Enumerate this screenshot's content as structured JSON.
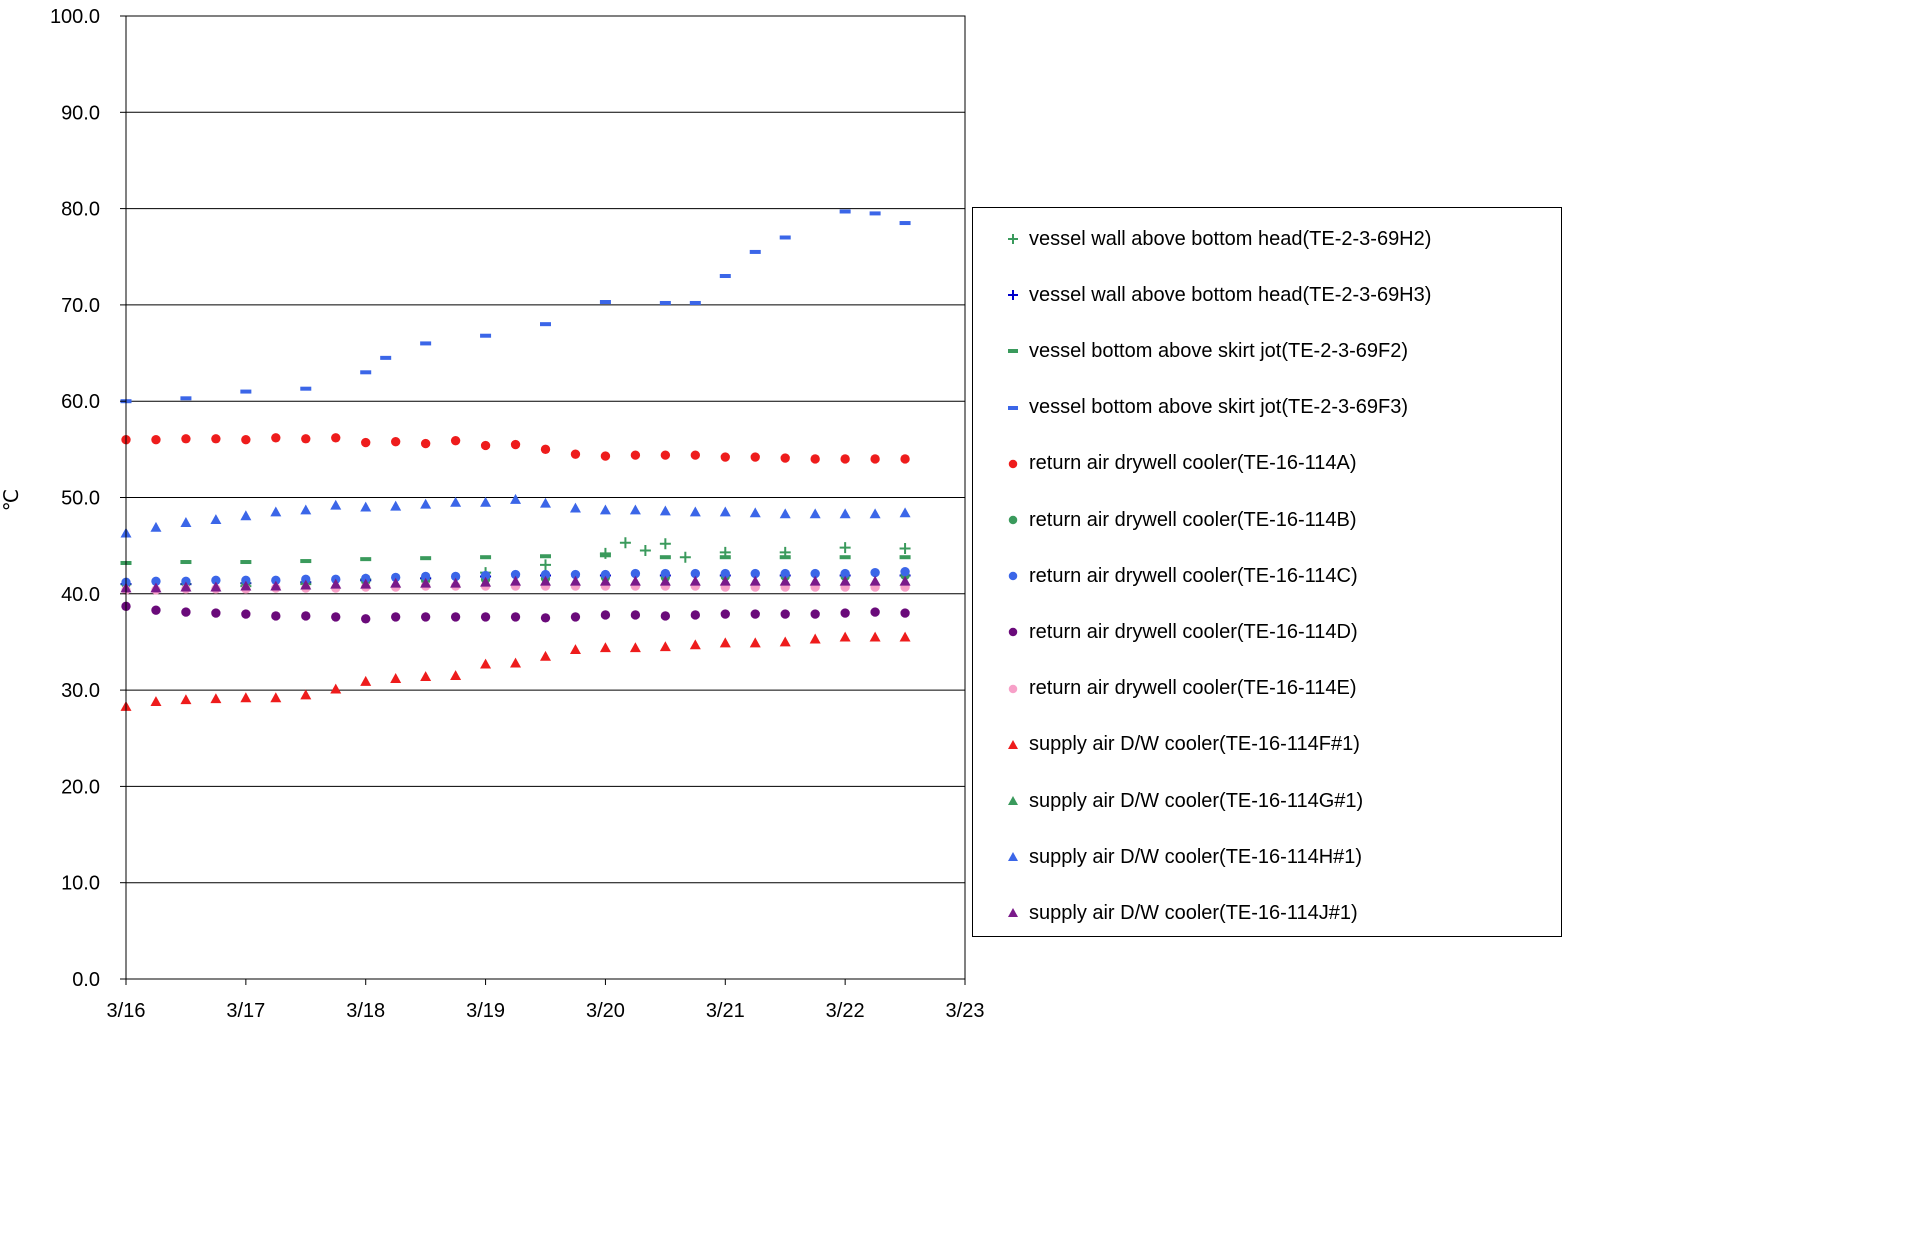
{
  "chart_data": {
    "type": "scatter",
    "title": "",
    "xlabel": "",
    "ylabel": "℃",
    "xlim": [
      "3/16",
      "3/23"
    ],
    "ylim": [
      0,
      100
    ],
    "y_ticks": [
      "0.0",
      "10.0",
      "20.0",
      "30.0",
      "40.0",
      "50.0",
      "60.0",
      "70.0",
      "80.0",
      "90.0",
      "100.0"
    ],
    "x_ticks": [
      "3/16",
      "3/17",
      "3/18",
      "3/19",
      "3/20",
      "3/21",
      "3/22",
      "3/23"
    ],
    "grid": "horizontal",
    "legend_position": "right",
    "series": [
      {
        "name": "vessel wall above bottom head(TE-2-3-69H2)",
        "marker": "plus",
        "color": "#3a9a5c",
        "x": [
          "3/16 00:00",
          "3/16 12:00",
          "3/17 00:00",
          "3/17 12:00",
          "3/18 00:00",
          "3/18 12:00",
          "3/19 00:00",
          "3/19 12:00",
          "3/20 00:00",
          "3/20 04:00",
          "3/20 08:00",
          "3/20 12:00",
          "3/20 16:00",
          "3/21 00:00",
          "3/21 12:00",
          "3/22 00:00",
          "3/22 12:00"
        ],
        "y": [
          41.0,
          41.0,
          40.8,
          41.0,
          41.5,
          41.6,
          42.2,
          43.0,
          44.2,
          45.3,
          44.5,
          45.2,
          43.8,
          44.3,
          44.3,
          44.8,
          44.7
        ]
      },
      {
        "name": "vessel wall above bottom head(TE-2-3-69H3)",
        "marker": "plus",
        "color": "#0000cc",
        "x": [
          "3/16 00:00",
          "3/16 12:00",
          "3/17 00:00",
          "3/17 12:00",
          "3/18 00:00",
          "3/18 12:00",
          "3/19 00:00",
          "3/19 12:00",
          "3/20 00:00",
          "3/20 12:00",
          "3/21 00:00",
          "3/21 12:00",
          "3/22 00:00",
          "3/22 12:00"
        ],
        "y": [
          41.0,
          41.0,
          41.1,
          41.2,
          41.4,
          41.6,
          41.8,
          41.9,
          41.9,
          41.9,
          41.9,
          41.9,
          41.9,
          41.9
        ]
      },
      {
        "name": "vessel bottom above skirt jot(TE-2-3-69F2)",
        "marker": "dash",
        "color": "#3a9a5c",
        "x": [
          "3/16 00:00",
          "3/16 12:00",
          "3/17 00:00",
          "3/17 12:00",
          "3/18 00:00",
          "3/18 12:00",
          "3/19 00:00",
          "3/19 12:00",
          "3/20 00:00",
          "3/20 12:00",
          "3/21 00:00",
          "3/21 12:00",
          "3/22 00:00",
          "3/22 12:00"
        ],
        "y": [
          43.2,
          43.3,
          43.3,
          43.4,
          43.6,
          43.7,
          43.8,
          43.9,
          44.0,
          43.8,
          43.8,
          43.8,
          43.8,
          43.8
        ]
      },
      {
        "name": "vessel bottom above skirt jot(TE-2-3-69F3)",
        "marker": "dash",
        "color": "#3b66e8",
        "x": [
          "3/16 00:00",
          "3/16 12:00",
          "3/17 00:00",
          "3/17 12:00",
          "3/18 00:00",
          "3/18 04:00",
          "3/18 12:00",
          "3/19 00:00",
          "3/19 12:00",
          "3/20 00:00",
          "3/20 12:00",
          "3/20 18:00",
          "3/21 00:00",
          "3/21 06:00",
          "3/21 12:00",
          "3/22 00:00",
          "3/22 06:00",
          "3/22 12:00"
        ],
        "y": [
          60.0,
          60.3,
          61.0,
          61.3,
          63.0,
          64.5,
          66.0,
          66.8,
          68.0,
          70.3,
          70.2,
          70.2,
          73.0,
          75.5,
          77.0,
          79.7,
          79.5,
          78.5
        ]
      },
      {
        "name": "return air drywell cooler(TE-16-114A)",
        "marker": "circle",
        "color": "#ee1c1c",
        "x": [
          "3/16 00:00",
          "3/16 06:00",
          "3/16 12:00",
          "3/16 18:00",
          "3/17 00:00",
          "3/17 06:00",
          "3/17 12:00",
          "3/17 18:00",
          "3/18 00:00",
          "3/18 06:00",
          "3/18 12:00",
          "3/18 18:00",
          "3/19 00:00",
          "3/19 06:00",
          "3/19 12:00",
          "3/19 18:00",
          "3/20 00:00",
          "3/20 06:00",
          "3/20 12:00",
          "3/20 18:00",
          "3/21 00:00",
          "3/21 06:00",
          "3/21 12:00",
          "3/21 18:00",
          "3/22 00:00",
          "3/22 06:00",
          "3/22 12:00"
        ],
        "y": [
          56.0,
          56.0,
          56.1,
          56.1,
          56.0,
          56.2,
          56.1,
          56.2,
          55.7,
          55.8,
          55.6,
          55.9,
          55.4,
          55.5,
          55.0,
          54.5,
          54.3,
          54.4,
          54.4,
          54.4,
          54.2,
          54.2,
          54.1,
          54.0,
          54.0,
          54.0,
          54.0
        ]
      },
      {
        "name": "return air drywell cooler(TE-16-114B)",
        "marker": "circle",
        "color": "#3a9a5c",
        "x": [
          "3/16 00:00",
          "3/16 12:00",
          "3/17 00:00",
          "3/17 12:00",
          "3/18 00:00",
          "3/18 12:00",
          "3/19 00:00",
          "3/19 12:00",
          "3/20 00:00",
          "3/20 12:00",
          "3/21 00:00",
          "3/21 12:00",
          "3/22 00:00",
          "3/22 12:00"
        ],
        "y": [
          41.0,
          41.1,
          41.1,
          41.2,
          41.3,
          41.4,
          41.5,
          41.6,
          41.7,
          41.7,
          41.8,
          41.8,
          41.8,
          41.9
        ]
      },
      {
        "name": "return air drywell cooler(TE-16-114C)",
        "marker": "circle",
        "color": "#3b66e8",
        "x": [
          "3/16 00:00",
          "3/16 06:00",
          "3/16 12:00",
          "3/16 18:00",
          "3/17 00:00",
          "3/17 06:00",
          "3/17 12:00",
          "3/17 18:00",
          "3/18 00:00",
          "3/18 06:00",
          "3/18 12:00",
          "3/18 18:00",
          "3/19 00:00",
          "3/19 06:00",
          "3/19 12:00",
          "3/19 18:00",
          "3/20 00:00",
          "3/20 06:00",
          "3/20 12:00",
          "3/20 18:00",
          "3/21 00:00",
          "3/21 06:00",
          "3/21 12:00",
          "3/21 18:00",
          "3/22 00:00",
          "3/22 06:00",
          "3/22 12:00"
        ],
        "y": [
          41.2,
          41.3,
          41.3,
          41.4,
          41.4,
          41.4,
          41.5,
          41.5,
          41.6,
          41.7,
          41.8,
          41.8,
          41.9,
          42.0,
          42.0,
          42.0,
          42.0,
          42.1,
          42.1,
          42.1,
          42.1,
          42.1,
          42.1,
          42.1,
          42.1,
          42.2,
          42.3
        ]
      },
      {
        "name": "return air drywell cooler(TE-16-114D)",
        "marker": "circle",
        "color": "#6a0a7a",
        "x": [
          "3/16 00:00",
          "3/16 06:00",
          "3/16 12:00",
          "3/16 18:00",
          "3/17 00:00",
          "3/17 06:00",
          "3/17 12:00",
          "3/17 18:00",
          "3/18 00:00",
          "3/18 06:00",
          "3/18 12:00",
          "3/18 18:00",
          "3/19 00:00",
          "3/19 06:00",
          "3/19 12:00",
          "3/19 18:00",
          "3/20 00:00",
          "3/20 06:00",
          "3/20 12:00",
          "3/20 18:00",
          "3/21 00:00",
          "3/21 06:00",
          "3/21 12:00",
          "3/21 18:00",
          "3/22 00:00",
          "3/22 06:00",
          "3/22 12:00"
        ],
        "y": [
          38.7,
          38.3,
          38.1,
          38.0,
          37.9,
          37.7,
          37.7,
          37.6,
          37.4,
          37.6,
          37.6,
          37.6,
          37.6,
          37.6,
          37.5,
          37.6,
          37.8,
          37.8,
          37.7,
          37.8,
          37.9,
          37.9,
          37.9,
          37.9,
          38.0,
          38.1,
          38.0
        ]
      },
      {
        "name": "return air drywell cooler(TE-16-114E)",
        "marker": "circle",
        "color": "#f7a0c8",
        "x": [
          "3/16 00:00",
          "3/16 06:00",
          "3/16 12:00",
          "3/16 18:00",
          "3/17 00:00",
          "3/17 06:00",
          "3/17 12:00",
          "3/17 18:00",
          "3/18 00:00",
          "3/18 06:00",
          "3/18 12:00",
          "3/18 18:00",
          "3/19 00:00",
          "3/19 06:00",
          "3/19 12:00",
          "3/19 18:00",
          "3/20 00:00",
          "3/20 06:00",
          "3/20 12:00",
          "3/20 18:00",
          "3/21 00:00",
          "3/21 06:00",
          "3/21 12:00",
          "3/21 18:00",
          "3/22 00:00",
          "3/22 06:00",
          "3/22 12:00"
        ],
        "y": [
          40.4,
          40.4,
          40.5,
          40.5,
          40.5,
          40.6,
          40.6,
          40.6,
          40.7,
          40.7,
          40.8,
          40.8,
          40.8,
          40.8,
          40.8,
          40.8,
          40.8,
          40.8,
          40.8,
          40.8,
          40.7,
          40.7,
          40.7,
          40.7,
          40.7,
          40.7,
          40.7
        ]
      },
      {
        "name": "supply air D/W cooler(TE-16-114F#1)",
        "marker": "triangle",
        "color": "#ee1c1c",
        "x": [
          "3/16 00:00",
          "3/16 06:00",
          "3/16 12:00",
          "3/16 18:00",
          "3/17 00:00",
          "3/17 06:00",
          "3/17 12:00",
          "3/17 18:00",
          "3/18 00:00",
          "3/18 06:00",
          "3/18 12:00",
          "3/18 18:00",
          "3/19 00:00",
          "3/19 06:00",
          "3/19 12:00",
          "3/19 18:00",
          "3/20 00:00",
          "3/20 06:00",
          "3/20 12:00",
          "3/20 18:00",
          "3/21 00:00",
          "3/21 06:00",
          "3/21 12:00",
          "3/21 18:00",
          "3/22 00:00",
          "3/22 06:00",
          "3/22 12:00"
        ],
        "y": [
          28.3,
          28.8,
          29.0,
          29.1,
          29.2,
          29.2,
          29.5,
          30.1,
          30.9,
          31.2,
          31.4,
          31.5,
          32.7,
          32.8,
          33.5,
          34.2,
          34.4,
          34.4,
          34.5,
          34.7,
          34.9,
          34.9,
          35.0,
          35.3,
          35.5,
          35.5,
          35.5
        ]
      },
      {
        "name": "supply air D/W cooler(TE-16-114G#1)",
        "marker": "triangle",
        "color": "#3a9a5c",
        "x": [],
        "y": []
      },
      {
        "name": "supply air D/W cooler(TE-16-114H#1)",
        "marker": "triangle",
        "color": "#3b66e8",
        "x": [
          "3/16 00:00",
          "3/16 06:00",
          "3/16 12:00",
          "3/16 18:00",
          "3/17 00:00",
          "3/17 06:00",
          "3/17 12:00",
          "3/17 18:00",
          "3/18 00:00",
          "3/18 06:00",
          "3/18 12:00",
          "3/18 18:00",
          "3/19 00:00",
          "3/19 06:00",
          "3/19 12:00",
          "3/19 18:00",
          "3/20 00:00",
          "3/20 06:00",
          "3/20 12:00",
          "3/20 18:00",
          "3/21 00:00",
          "3/21 06:00",
          "3/21 12:00",
          "3/21 18:00",
          "3/22 00:00",
          "3/22 06:00",
          "3/22 12:00"
        ],
        "y": [
          46.3,
          46.9,
          47.4,
          47.7,
          48.1,
          48.5,
          48.7,
          49.2,
          49.0,
          49.1,
          49.3,
          49.5,
          49.5,
          49.8,
          49.4,
          48.9,
          48.7,
          48.7,
          48.6,
          48.5,
          48.5,
          48.4,
          48.3,
          48.3,
          48.3,
          48.3,
          48.4
        ]
      },
      {
        "name": "supply air D/W cooler(TE-16-114J#1)",
        "marker": "triangle",
        "color": "#7a1a8a",
        "x": [
          "3/16 00:00",
          "3/16 06:00",
          "3/16 12:00",
          "3/16 18:00",
          "3/17 00:00",
          "3/17 06:00",
          "3/17 12:00",
          "3/17 18:00",
          "3/18 00:00",
          "3/18 06:00",
          "3/18 12:00",
          "3/18 18:00",
          "3/19 00:00",
          "3/19 06:00",
          "3/19 12:00",
          "3/19 18:00",
          "3/20 00:00",
          "3/20 06:00",
          "3/20 12:00",
          "3/20 18:00",
          "3/21 00:00",
          "3/21 06:00",
          "3/21 12:00",
          "3/21 18:00",
          "3/22 00:00",
          "3/22 06:00",
          "3/22 12:00"
        ],
        "y": [
          40.6,
          40.6,
          40.7,
          40.7,
          40.8,
          40.8,
          40.9,
          41.0,
          41.0,
          41.1,
          41.1,
          41.1,
          41.2,
          41.3,
          41.3,
          41.3,
          41.3,
          41.3,
          41.3,
          41.3,
          41.3,
          41.3,
          41.3,
          41.3,
          41.3,
          41.3,
          41.3
        ]
      }
    ]
  }
}
